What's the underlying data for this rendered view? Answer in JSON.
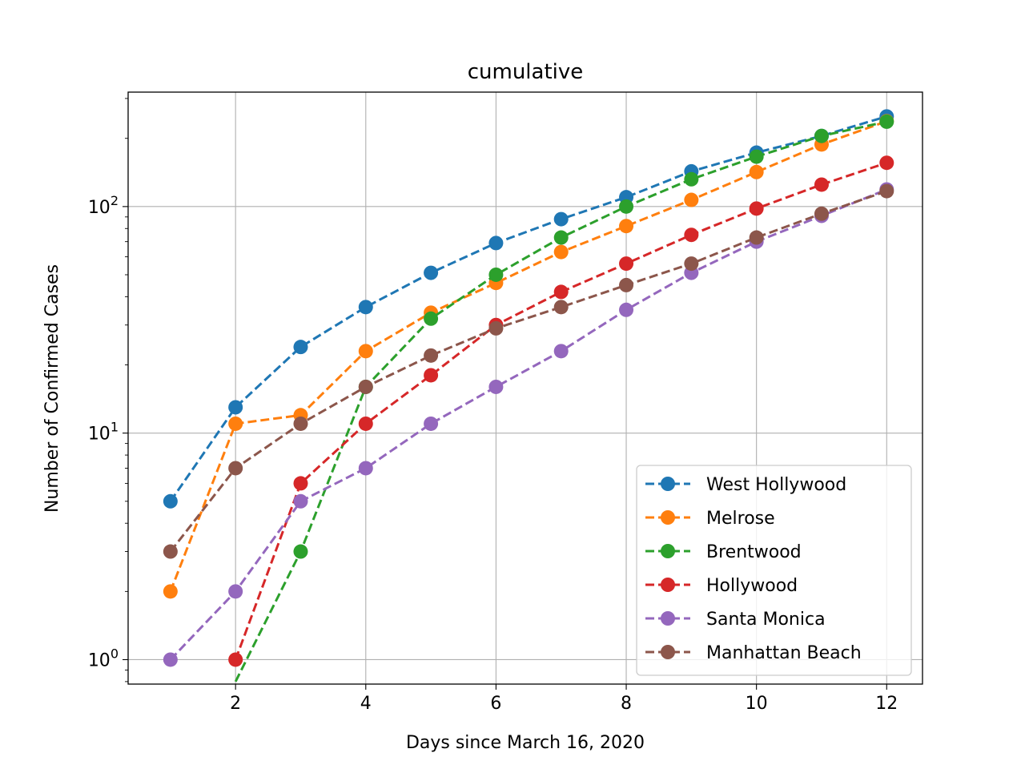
{
  "chart_data": {
    "type": "line",
    "title": "cumulative",
    "xlabel": "Days since March 16, 2020",
    "ylabel": "Number of Confirmed Cases",
    "yscale": "log",
    "xlim": [
      0.35,
      12.55
    ],
    "ylim": [
      0.78,
      320
    ],
    "grid": true,
    "legend_position": "bottom-right",
    "x_ticks": [
      2,
      4,
      6,
      8,
      10,
      12
    ],
    "x_tick_labels": [
      "2",
      "4",
      "6",
      "8",
      "10",
      "12"
    ],
    "y_ticks": [
      1,
      10,
      100
    ],
    "y_tick_labels": [
      {
        "base": "10",
        "exp": "0"
      },
      {
        "base": "10",
        "exp": "1"
      },
      {
        "base": "10",
        "exp": "2"
      }
    ],
    "x": [
      1,
      2,
      3,
      4,
      5,
      6,
      7,
      8,
      9,
      10,
      11,
      12
    ],
    "series": [
      {
        "name": "West Hollywood",
        "color": "#1f77b4",
        "values": [
          5,
          13,
          24,
          36,
          51,
          69,
          88,
          110,
          143,
          173,
          205,
          250
        ]
      },
      {
        "name": "Melrose",
        "color": "#ff7f0e",
        "values": [
          2,
          11,
          12,
          23,
          34,
          46,
          63,
          82,
          107,
          142,
          188,
          238
        ]
      },
      {
        "name": "Brentwood",
        "color": "#2ca02c",
        "values": [
          0,
          0.8,
          3,
          16,
          32,
          50,
          73,
          100,
          132,
          166,
          205,
          237
        ]
      },
      {
        "name": "Hollywood",
        "color": "#d62728",
        "values": [
          0,
          1,
          6,
          11,
          18,
          30,
          42,
          56,
          75,
          98,
          125,
          156
        ]
      },
      {
        "name": "Santa Monica",
        "color": "#9467bd",
        "values": [
          1,
          2,
          5,
          7,
          11,
          16,
          23,
          35,
          51,
          70,
          91,
          119
        ]
      },
      {
        "name": "Manhattan Beach",
        "color": "#8c564b",
        "values": [
          3,
          7,
          11,
          16,
          22,
          29,
          36,
          45,
          56,
          73,
          93,
          117
        ]
      }
    ]
  }
}
